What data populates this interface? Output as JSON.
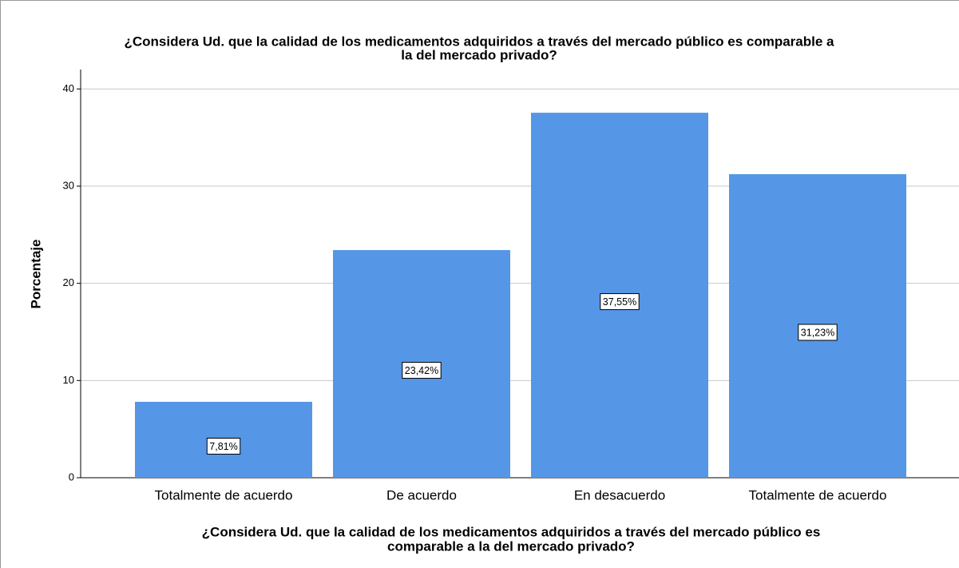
{
  "chart_data": {
    "type": "bar",
    "title": [
      "¿Considera Ud. que la calidad de los medicamentos adquiridos a través del mercado público es comparable a",
      "la del mercado privado?"
    ],
    "x_label": [
      "¿Considera Ud. que la calidad de los medicamentos adquiridos a través del mercado público es",
      "comparable a la del mercado privado?"
    ],
    "y_label": "Porcentaje",
    "categories": [
      "Totalmente de acuerdo",
      "De acuerdo",
      "En desacuerdo",
      "Totalmente de acuerdo"
    ],
    "values": [
      7.81,
      23.42,
      37.55,
      31.23
    ],
    "value_labels": [
      "7,81%",
      "23,42%",
      "37,55%",
      "31,23%"
    ],
    "color": "#5596e6",
    "ylim": [
      0,
      42
    ],
    "yticks": [
      0,
      10,
      20,
      30,
      40
    ],
    "grid": true
  }
}
